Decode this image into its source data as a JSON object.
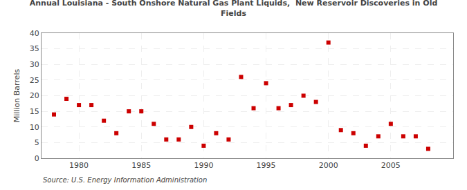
{
  "chart_data": {
    "type": "scatter",
    "title": "Annual Louisiana - South Onshore Natural Gas Plant Liquids,  New Reservoir Discoveries in Old\nFields",
    "ylabel": "Million Barrels",
    "annotations": [
      "Source: U.S. Energy Information Administration"
    ],
    "x": [
      1978,
      1979,
      1980,
      1981,
      1982,
      1983,
      1984,
      1985,
      1986,
      1987,
      1988,
      1989,
      1990,
      1991,
      1992,
      1993,
      1994,
      1995,
      1996,
      1997,
      1998,
      1999,
      2000,
      2001,
      2002,
      2003,
      2004,
      2005,
      2006,
      2007,
      2008
    ],
    "values": [
      14,
      19,
      17,
      17,
      12,
      8,
      15,
      15,
      11,
      6,
      6,
      10,
      4,
      8,
      6,
      26,
      16,
      24,
      16,
      17,
      20,
      18,
      37,
      9,
      8,
      4,
      7,
      11,
      7,
      7,
      3
    ],
    "color": "#CC0000",
    "marker": "square",
    "xlim": [
      1977,
      2010
    ],
    "ylim": [
      0,
      40
    ],
    "xticks": [
      1980,
      1985,
      1990,
      1995,
      2000,
      2005
    ],
    "yticks": [
      0,
      5,
      10,
      15,
      20,
      25,
      30,
      35,
      40
    ],
    "grid": true
  }
}
